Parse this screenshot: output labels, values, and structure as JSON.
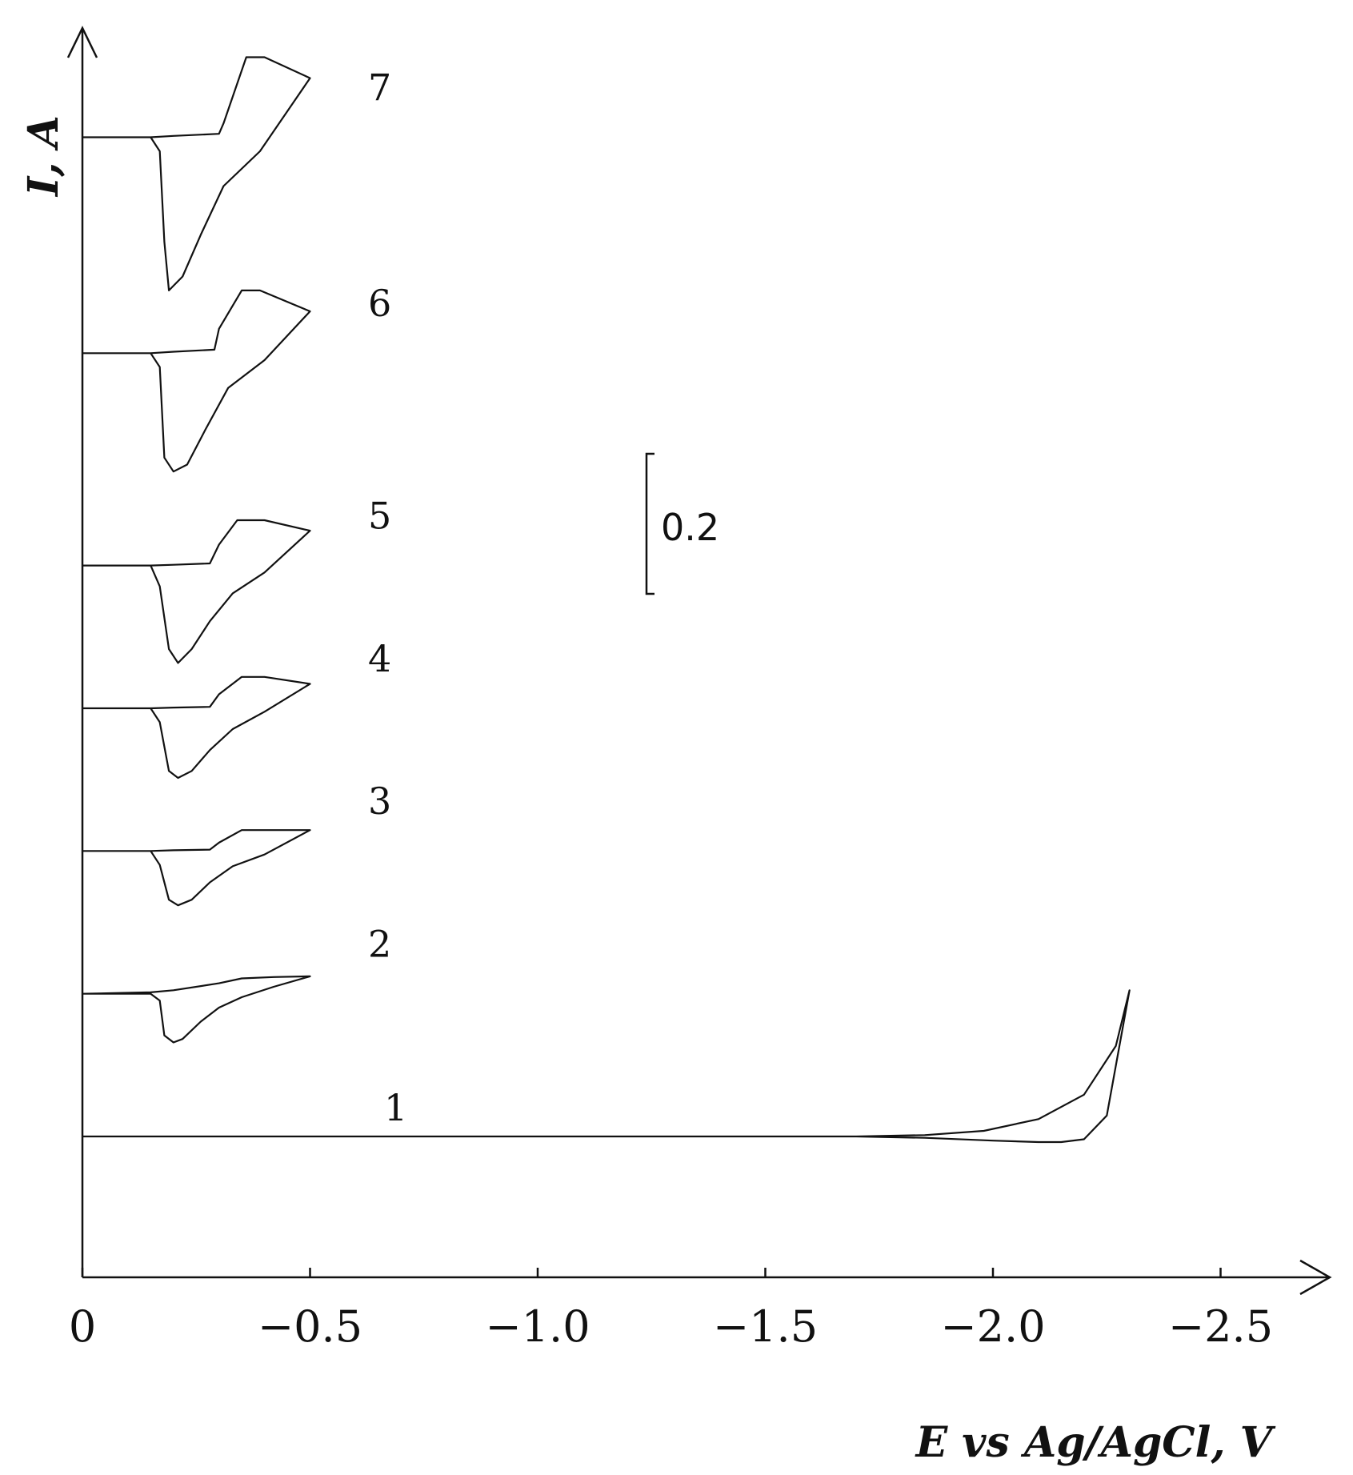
{
  "chart_data": {
    "type": "line",
    "xlabel": "E vs Ag/AgCl, V",
    "ylabel": "I, A",
    "xlim": [
      0,
      -2.7
    ],
    "x_tick_labels": [
      "0",
      "−0.5",
      "−1.0",
      "−1.5",
      "−2.0",
      "−2.5"
    ],
    "x_ticks": [
      0,
      -0.5,
      -1.0,
      -1.5,
      -2.0,
      -2.5
    ],
    "scale_bar": {
      "label": "0.2",
      "value": 0.2
    },
    "series": [
      {
        "name": "1",
        "baseline": 0.0,
        "x": [
          0,
          -1.7,
          -1.85,
          -2.0,
          -2.1,
          -2.15,
          -2.2,
          -2.25,
          -2.3,
          -2.27,
          -2.2,
          -2.1,
          -1.98,
          -1.85,
          -1.7
        ],
        "y": [
          0,
          0,
          -0.002,
          -0.006,
          -0.008,
          -0.008,
          -0.004,
          0.03,
          0.21,
          0.13,
          0.06,
          0.025,
          0.008,
          0.002,
          0
        ]
      },
      {
        "name": "2",
        "baseline": 0.205,
        "x": [
          0,
          -0.15,
          -0.17,
          -0.18,
          -0.2,
          -0.22,
          -0.26,
          -0.3,
          -0.35,
          -0.42,
          -0.5,
          -0.42,
          -0.35,
          -0.3,
          -0.2,
          -0.15,
          0
        ],
        "y": [
          0,
          0,
          -0.01,
          -0.06,
          -0.07,
          -0.065,
          -0.04,
          -0.02,
          -0.005,
          0.01,
          0.025,
          0.024,
          0.022,
          0.015,
          0.005,
          0.002,
          0
        ]
      },
      {
        "name": "3",
        "baseline": 0.41,
        "x": [
          0,
          -0.15,
          -0.17,
          -0.19,
          -0.21,
          -0.24,
          -0.28,
          -0.33,
          -0.4,
          -0.5,
          -0.4,
          -0.35,
          -0.3,
          -0.28,
          -0.2,
          -0.15,
          0
        ],
        "y": [
          0,
          0,
          -0.02,
          -0.07,
          -0.078,
          -0.07,
          -0.045,
          -0.022,
          -0.005,
          0.03,
          0.03,
          0.03,
          0.012,
          0.002,
          0.001,
          0,
          0
        ]
      },
      {
        "name": "4",
        "baseline": 0.615,
        "x": [
          0,
          -0.15,
          -0.17,
          -0.19,
          -0.21,
          -0.24,
          -0.28,
          -0.33,
          -0.4,
          -0.5,
          -0.4,
          -0.35,
          -0.3,
          -0.28,
          -0.2,
          -0.15,
          0
        ],
        "y": [
          0,
          0,
          -0.02,
          -0.09,
          -0.1,
          -0.09,
          -0.06,
          -0.03,
          -0.005,
          0.035,
          0.045,
          0.045,
          0.02,
          0.002,
          0.001,
          0,
          0
        ]
      },
      {
        "name": "5",
        "baseline": 0.82,
        "x": [
          0,
          -0.15,
          -0.17,
          -0.19,
          -0.21,
          -0.24,
          -0.28,
          -0.33,
          -0.4,
          -0.5,
          -0.4,
          -0.34,
          -0.3,
          -0.28,
          -0.2,
          -0.15,
          0
        ],
        "y": [
          0,
          0,
          -0.03,
          -0.12,
          -0.14,
          -0.12,
          -0.08,
          -0.04,
          -0.01,
          0.05,
          0.065,
          0.065,
          0.03,
          0.003,
          0.001,
          0,
          0
        ]
      },
      {
        "name": "6",
        "baseline": 1.125,
        "x": [
          0,
          -0.15,
          -0.17,
          -0.18,
          -0.2,
          -0.23,
          -0.27,
          -0.32,
          -0.4,
          -0.5,
          -0.39,
          -0.35,
          -0.3,
          -0.29,
          -0.2,
          -0.15,
          0
        ],
        "y": [
          0,
          0,
          -0.02,
          -0.15,
          -0.17,
          -0.16,
          -0.11,
          -0.05,
          -0.01,
          0.06,
          0.09,
          0.09,
          0.035,
          0.005,
          0.002,
          0,
          0
        ]
      },
      {
        "name": "7",
        "baseline": 1.435,
        "x": [
          0,
          -0.15,
          -0.17,
          -0.18,
          -0.19,
          -0.22,
          -0.26,
          -0.31,
          -0.39,
          -0.5,
          -0.4,
          -0.36,
          -0.31,
          -0.3,
          -0.2,
          -0.15,
          0
        ],
        "y": [
          0,
          0,
          -0.02,
          -0.15,
          -0.22,
          -0.2,
          -0.14,
          -0.07,
          -0.02,
          0.085,
          0.115,
          0.115,
          0.02,
          0.005,
          0.002,
          0,
          0
        ]
      }
    ]
  }
}
